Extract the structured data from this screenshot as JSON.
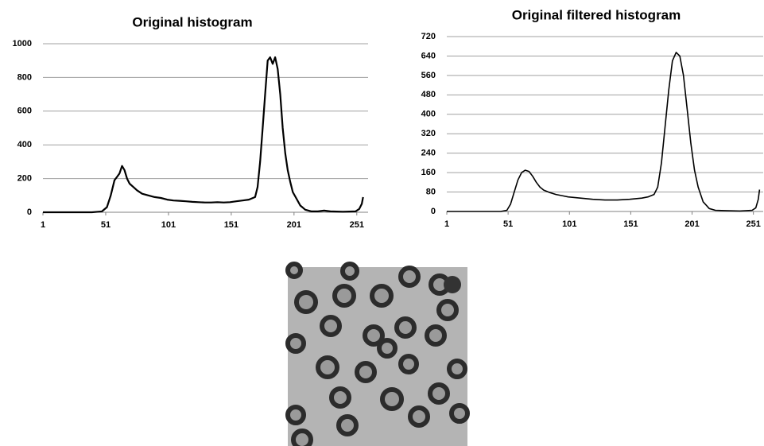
{
  "chart_data": [
    {
      "type": "line",
      "title": "Original histogram",
      "xlim": [
        1,
        260
      ],
      "xticks": [
        1,
        51,
        101,
        151,
        201,
        251
      ],
      "ylim": [
        0,
        1000
      ],
      "yticks": [
        0,
        200,
        400,
        600,
        800,
        1000
      ],
      "grid": true,
      "color": "#000000",
      "x": [
        1,
        40,
        48,
        52,
        55,
        58,
        60,
        62,
        64,
        66,
        68,
        70,
        73,
        76,
        80,
        85,
        90,
        95,
        100,
        105,
        110,
        115,
        120,
        125,
        130,
        135,
        140,
        145,
        150,
        155,
        160,
        165,
        170,
        172,
        174,
        176,
        178,
        180,
        182,
        184,
        186,
        188,
        190,
        192,
        194,
        196,
        198,
        200,
        203,
        206,
        210,
        215,
        220,
        225,
        230,
        240,
        250,
        253,
        255,
        256
      ],
      "values": [
        0,
        0,
        5,
        30,
        100,
        190,
        210,
        230,
        275,
        250,
        200,
        170,
        150,
        130,
        110,
        100,
        90,
        85,
        75,
        70,
        68,
        65,
        62,
        60,
        58,
        58,
        60,
        58,
        60,
        65,
        70,
        75,
        90,
        150,
        300,
        500,
        700,
        900,
        920,
        880,
        920,
        850,
        700,
        500,
        350,
        250,
        180,
        120,
        80,
        40,
        15,
        5,
        5,
        10,
        5,
        3,
        5,
        20,
        50,
        90
      ]
    },
    {
      "type": "line",
      "title": "Original filtered histogram",
      "xlim": [
        1,
        259
      ],
      "xticks": [
        1,
        51,
        101,
        151,
        201,
        251
      ],
      "ylim": [
        0,
        720
      ],
      "yticks": [
        0,
        80,
        160,
        240,
        320,
        400,
        480,
        560,
        640,
        720
      ],
      "grid": true,
      "color": "#000000",
      "x": [
        1,
        45,
        50,
        53,
        56,
        59,
        62,
        65,
        68,
        71,
        74,
        77,
        80,
        85,
        90,
        95,
        100,
        110,
        120,
        130,
        140,
        150,
        160,
        165,
        170,
        173,
        176,
        179,
        182,
        185,
        188,
        191,
        194,
        197,
        200,
        203,
        206,
        210,
        215,
        220,
        230,
        240,
        250,
        253,
        255,
        256
      ],
      "values": [
        0,
        0,
        5,
        30,
        80,
        130,
        160,
        170,
        165,
        145,
        120,
        100,
        88,
        78,
        70,
        65,
        60,
        55,
        50,
        47,
        47,
        50,
        55,
        60,
        70,
        100,
        200,
        350,
        500,
        620,
        655,
        640,
        560,
        420,
        280,
        170,
        100,
        40,
        12,
        5,
        3,
        2,
        5,
        15,
        50,
        90
      ]
    }
  ]
}
